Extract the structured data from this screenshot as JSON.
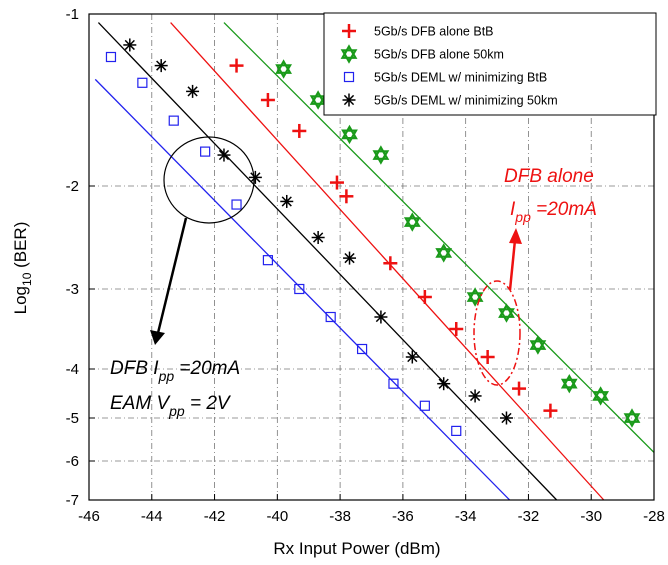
{
  "chart_data": {
    "type": "scatter",
    "xlabel": "Rx Input Power (dBm)",
    "ylabel_main": "Log",
    "ylabel_sub": "10",
    "ylabel_rest": " (BER)",
    "xlim": [
      -46,
      -28
    ],
    "ylim": [
      -7,
      -1
    ],
    "y_scale": "log-log BER (-log10 BER axis)",
    "grid": true,
    "legend_position": "top-right",
    "x_ticks": [
      "-46",
      "-44",
      "-42",
      "-40",
      "-38",
      "-36",
      "-34",
      "-32",
      "-30",
      "-28"
    ],
    "y_ticks": [
      "-1",
      "-2",
      "-3",
      "-4",
      "-5",
      "-6",
      "-7"
    ],
    "series": [
      {
        "name": "5Gb/s DFB alone BtB",
        "color": "#ee1111",
        "marker": "plus",
        "x": [
          -41.3,
          -40.3,
          -39.3,
          -38.1,
          -37.8,
          -36.4,
          -35.3,
          -34.3,
          -33.3,
          -32.3,
          -31.3
        ],
        "y": [
          -1.3,
          -1.5,
          -1.68,
          -1.98,
          -2.1,
          -2.75,
          -3.1,
          -3.5,
          -3.85,
          -4.4,
          -4.85
        ],
        "fit": {
          "x": [
            -43.4,
            -29.6
          ],
          "y": [
            -1.05,
            -7.0
          ]
        }
      },
      {
        "name": "5Gb/s DFB alone 50km",
        "color": "#1a9a1a",
        "marker": "star",
        "x": [
          -39.8,
          -38.7,
          -37.7,
          -36.7,
          -35.7,
          -34.7,
          -33.7,
          -32.7,
          -31.7,
          -30.7,
          -29.7,
          -28.7
        ],
        "y": [
          -1.32,
          -1.5,
          -1.7,
          -1.82,
          -2.35,
          -2.65,
          -3.1,
          -3.3,
          -3.7,
          -4.3,
          -4.55,
          -5.0
        ],
        "fit": {
          "x": [
            -41.7,
            -28.0
          ],
          "y": [
            -1.05,
            -5.8
          ]
        }
      },
      {
        "name": "5Gb/s DEML w/ minimizing BtB",
        "color": "#2222ee",
        "marker": "square",
        "x": [
          -45.3,
          -44.3,
          -43.3,
          -42.3,
          -41.3,
          -40.3,
          -39.3,
          -38.3,
          -37.3,
          -36.3,
          -35.3,
          -34.3
        ],
        "y": [
          -1.25,
          -1.4,
          -1.62,
          -1.8,
          -2.18,
          -2.72,
          -3.0,
          -3.35,
          -3.75,
          -4.3,
          -4.75,
          -5.3
        ],
        "fit": {
          "x": [
            -45.8,
            -32.6
          ],
          "y": [
            -1.38,
            -7.0
          ]
        }
      },
      {
        "name": "5Gb/s DEML w/ minimizing 50km",
        "color": "#000000",
        "marker": "asterisk",
        "x": [
          -44.7,
          -43.7,
          -42.7,
          -41.7,
          -40.7,
          -39.7,
          -38.7,
          -37.7,
          -36.7,
          -35.7,
          -34.7,
          -33.7,
          -32.7
        ],
        "y": [
          -1.18,
          -1.3,
          -1.45,
          -1.82,
          -1.95,
          -2.15,
          -2.5,
          -2.7,
          -3.35,
          -3.85,
          -4.3,
          -4.55,
          -5.0
        ],
        "fit": {
          "x": [
            -45.7,
            -31.1
          ],
          "y": [
            -1.05,
            -7.0
          ]
        }
      }
    ],
    "annotations": {
      "red_line1": "DFB alone",
      "red_line2_main": "I",
      "red_line2_sub": "pp",
      "red_line2_rest": " =20mA",
      "black_line1_main": "DFB  I",
      "black_line1_sub": "pp",
      "black_line1_rest": " =20mA",
      "black_line2_main": "EAM V",
      "black_line2_sub": "pp",
      "black_line2_rest": " = 2V"
    }
  }
}
